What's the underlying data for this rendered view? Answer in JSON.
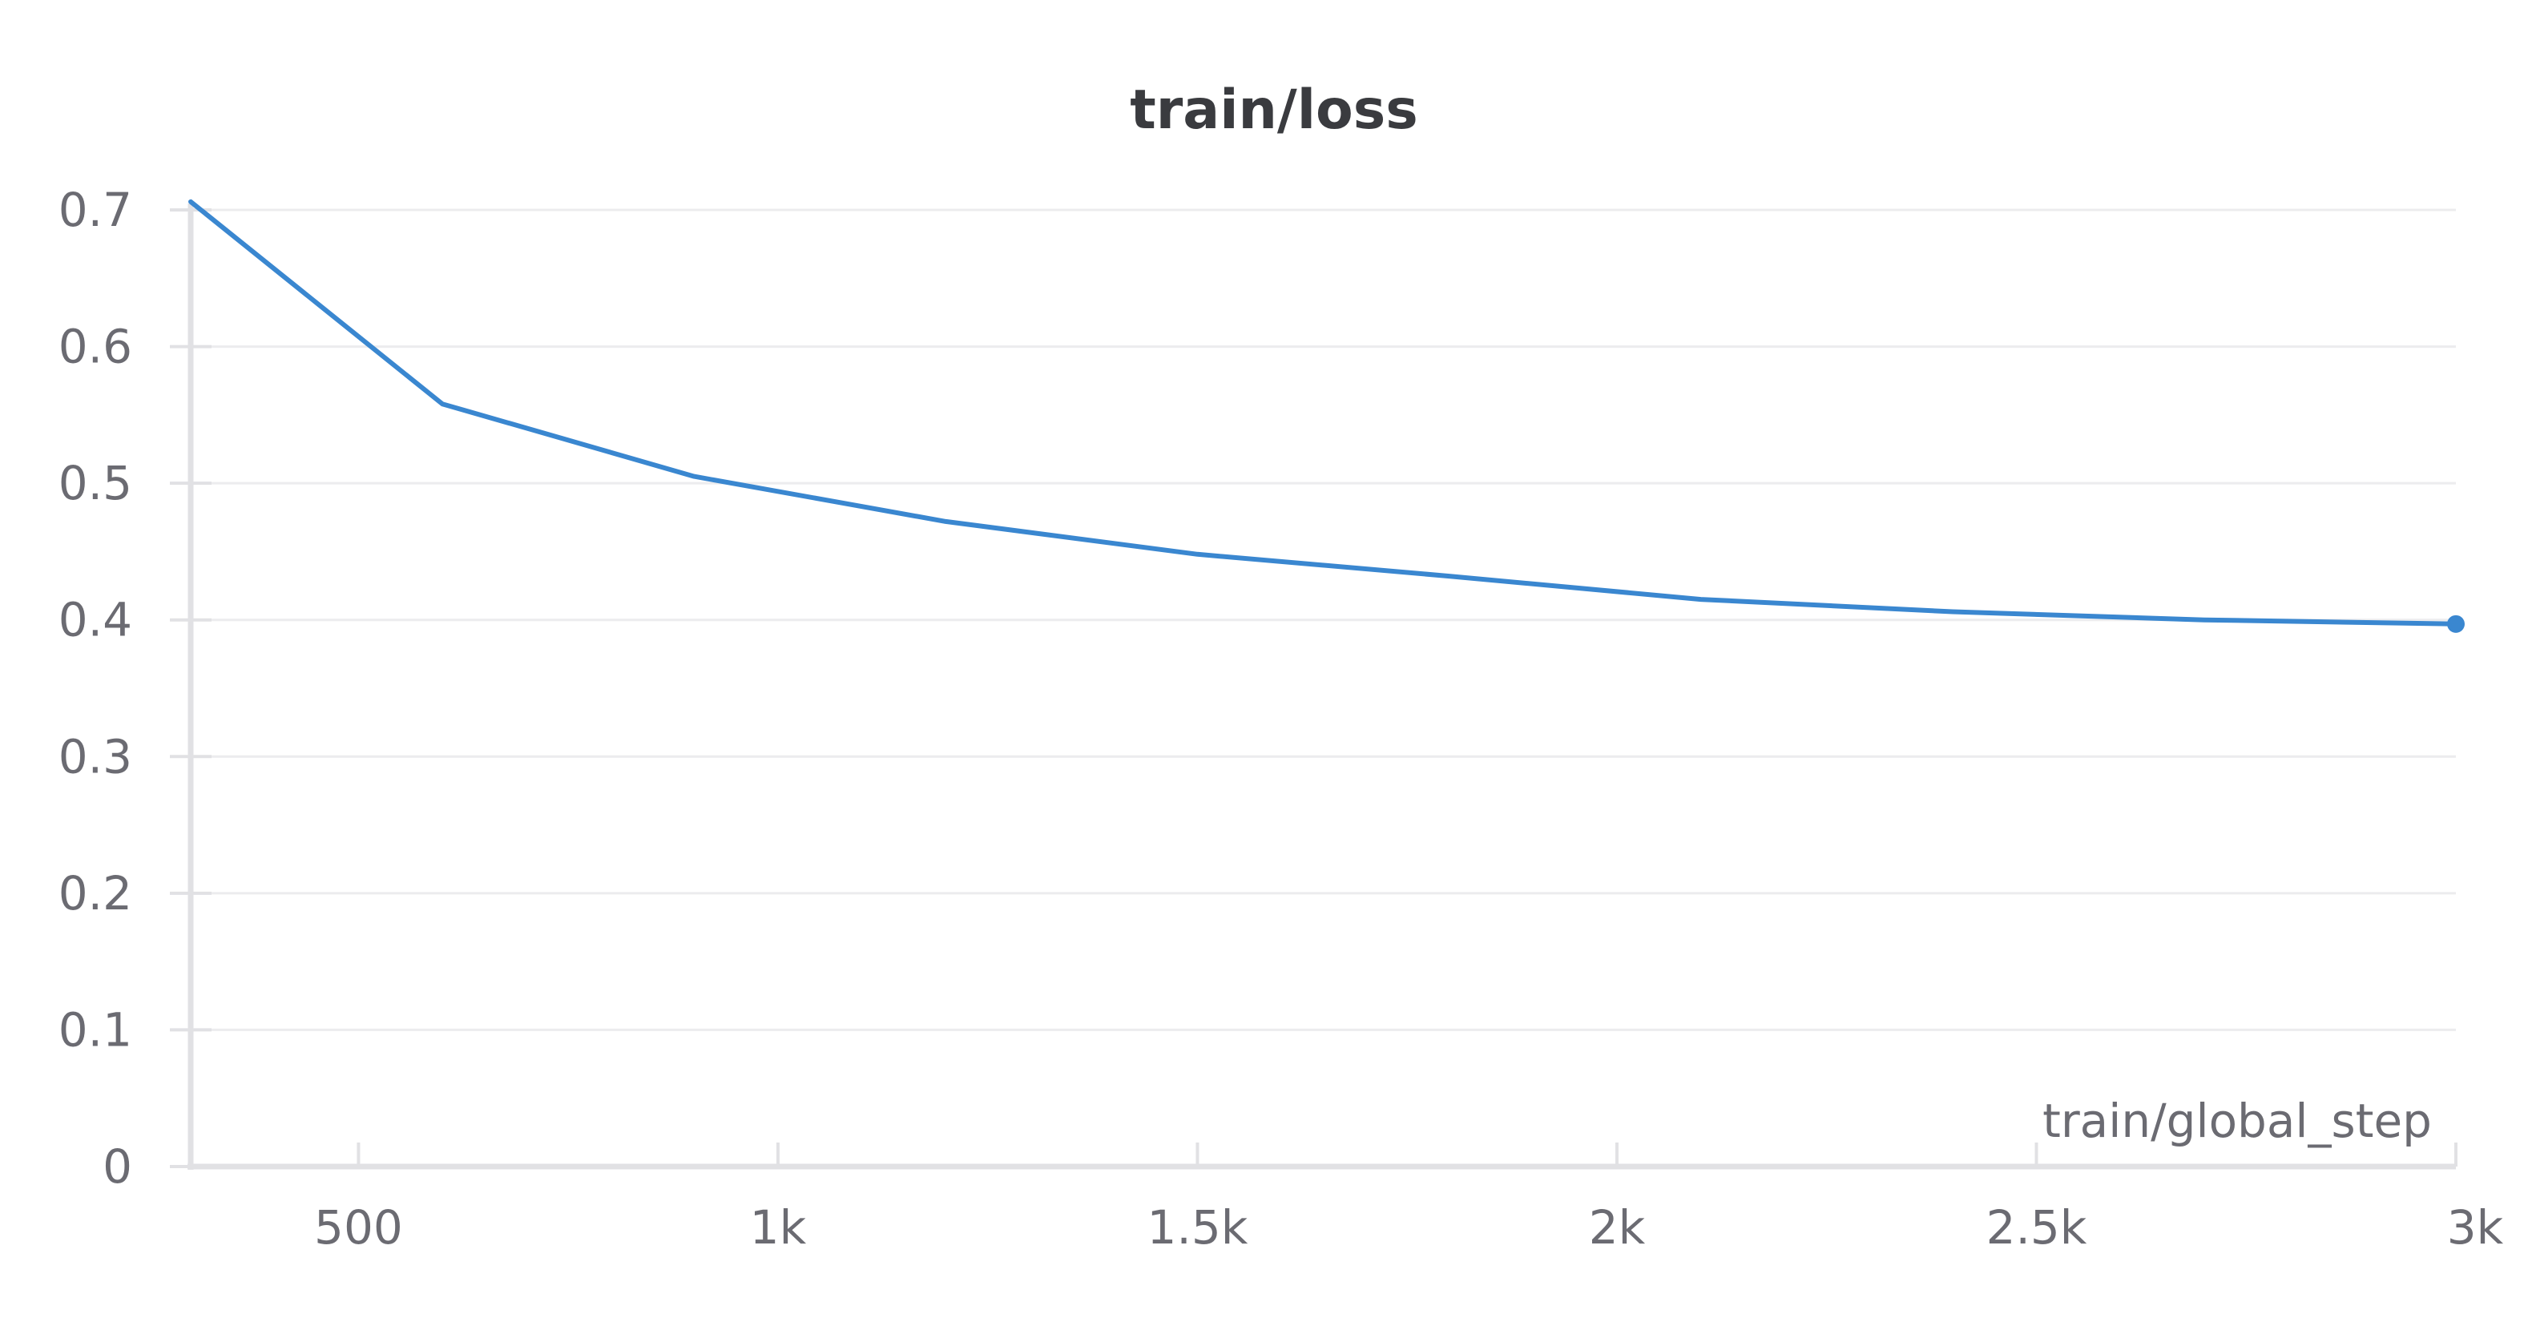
{
  "chart_data": {
    "type": "line",
    "title": "train/loss",
    "xlabel": "train/global_step",
    "ylabel": "",
    "xlim": [
      300,
      3000
    ],
    "ylim": [
      0,
      0.7
    ],
    "x_ticks": [
      500,
      1000,
      1500,
      2000,
      2500,
      3000
    ],
    "x_tick_labels": [
      "500",
      "1k",
      "1.5k",
      "2k",
      "2.5k",
      "3k"
    ],
    "y_ticks": [
      0,
      0.1,
      0.2,
      0.3,
      0.4,
      0.5,
      0.6,
      0.7
    ],
    "y_tick_labels": [
      "0",
      "0.1",
      "0.2",
      "0.3",
      "0.4",
      "0.5",
      "0.6",
      "0.7"
    ],
    "grid": true,
    "legend": "none",
    "line_color": "#3a87d0",
    "series": [
      {
        "x": [
          300,
          600,
          900,
          1200,
          1500,
          1800,
          2100,
          2400,
          2700,
          3000
        ],
        "values": [
          0.706,
          0.558,
          0.505,
          0.472,
          0.448,
          0.432,
          0.415,
          0.406,
          0.4,
          0.397
        ]
      }
    ]
  }
}
